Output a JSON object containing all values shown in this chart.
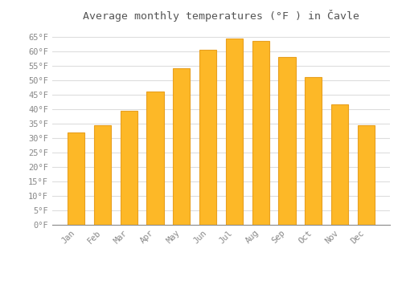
{
  "title": "Average monthly temperatures (°F ) in Čavle",
  "months": [
    "Jan",
    "Feb",
    "Mar",
    "Apr",
    "May",
    "Jun",
    "Jul",
    "Aug",
    "Sep",
    "Oct",
    "Nov",
    "Dec"
  ],
  "values": [
    32,
    34.5,
    39.5,
    46,
    54,
    60.5,
    64.5,
    63.5,
    58,
    51,
    41.5,
    34.5
  ],
  "bar_color": "#FDB827",
  "bar_edge_color": "#E8A020",
  "background_color": "#FFFFFF",
  "grid_color": "#DDDDDD",
  "text_color": "#888888",
  "title_color": "#555555",
  "ylim": [
    0,
    68
  ],
  "yticks": [
    0,
    5,
    10,
    15,
    20,
    25,
    30,
    35,
    40,
    45,
    50,
    55,
    60,
    65
  ],
  "title_fontsize": 9.5,
  "tick_fontsize": 7.5,
  "font_family": "monospace"
}
